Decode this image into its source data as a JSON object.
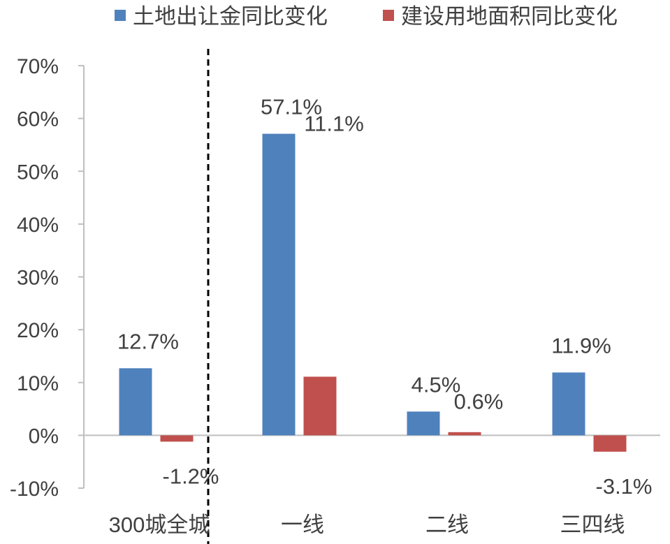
{
  "chart_data": {
    "type": "bar",
    "categories": [
      "300城全城",
      "一线",
      "二线",
      "三四线"
    ],
    "series": [
      {
        "name": "土地出让金同比变化",
        "color": "#4F81BD",
        "values": [
          12.7,
          57.1,
          4.5,
          11.9
        ],
        "labels": [
          "12.7%",
          "57.1%",
          "4.5%",
          "11.9%"
        ]
      },
      {
        "name": "建设用地面积同比变化",
        "color": "#C0504D",
        "values": [
          -1.2,
          11.1,
          0.6,
          -3.1
        ],
        "labels": [
          "-1.2%",
          "11.1%",
          "0.6%",
          "-3.1%"
        ]
      }
    ],
    "ylim": [
      -10,
      70
    ],
    "yticks": [
      -10,
      0,
      10,
      20,
      30,
      40,
      50,
      60,
      70
    ],
    "ytick_labels": [
      "-10%",
      "0%",
      "10%",
      "20%",
      "30%",
      "40%",
      "50%",
      "60%",
      "70%"
    ],
    "legend_position": "top",
    "grid": false,
    "separator": "dashed vertical line after first category"
  }
}
